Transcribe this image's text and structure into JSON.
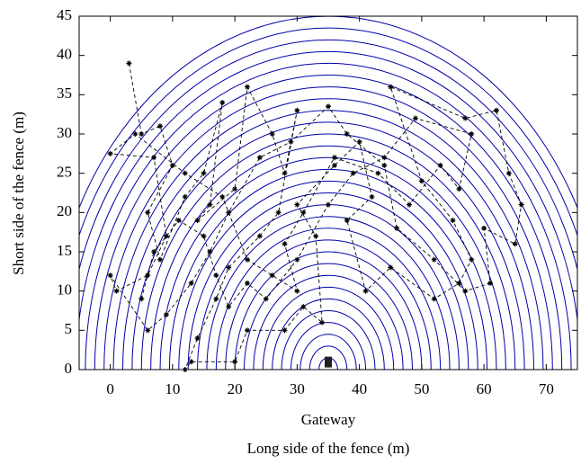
{
  "chart_data": {
    "type": "scatter",
    "x_label": "Long side of the fence (m)",
    "y_label": "Short side of the fence (m)",
    "annotation": "Gateway",
    "gateway": {
      "x": 35,
      "y": 0.5
    },
    "rings": {
      "color": "#0000aa",
      "center_x": 35,
      "center_y": 0,
      "radii": [
        1.5,
        3,
        4.5,
        6,
        7.5,
        9,
        10.5,
        12,
        13.5,
        15,
        16.5,
        18,
        19.5,
        21,
        22.5,
        24,
        25.5,
        27,
        28.5,
        30,
        31.5,
        33,
        34.5,
        36,
        37.5,
        39,
        40.5,
        42,
        43.5,
        45
      ]
    },
    "xlim": [
      -5,
      75
    ],
    "ylim": [
      0,
      45
    ],
    "xticks": [
      0,
      10,
      20,
      30,
      40,
      50,
      60,
      70
    ],
    "yticks": [
      0,
      5,
      10,
      15,
      20,
      25,
      30,
      35,
      40,
      45
    ],
    "series": [
      {
        "color": "#000000",
        "x": [
          3,
          5,
          8,
          10,
          6,
          8,
          12,
          15,
          18,
          16,
          14,
          20,
          22,
          26,
          28,
          30,
          27,
          24,
          19,
          17,
          14,
          12,
          13,
          20,
          22,
          28,
          31,
          34,
          33,
          30,
          36,
          40,
          42,
          38,
          41,
          45,
          52,
          56,
          58,
          55,
          50,
          45,
          57,
          62,
          64,
          66,
          65,
          60,
          61,
          57,
          52,
          46,
          44,
          38,
          35,
          29,
          24,
          19,
          16,
          13,
          9,
          6,
          0,
          1,
          6,
          9,
          7,
          0,
          4,
          12,
          18,
          22,
          26,
          30,
          28,
          31,
          36,
          43,
          48,
          53,
          56,
          58,
          49,
          44,
          39,
          35,
          30,
          25,
          22,
          19,
          17,
          15,
          11,
          7,
          5
        ],
        "values": [
          39,
          30,
          31,
          26,
          20,
          14,
          22,
          25,
          34,
          21,
          19,
          23,
          36,
          30,
          25,
          33,
          20,
          17,
          13,
          9,
          4,
          0,
          1,
          1,
          5,
          5,
          8,
          6,
          17,
          21,
          26,
          29,
          22,
          19,
          10,
          13,
          9,
          11,
          14,
          19,
          24,
          36,
          32,
          33,
          25,
          21,
          16,
          18,
          11,
          10,
          14,
          18,
          26,
          30,
          33.5,
          29,
          27,
          20,
          15,
          11,
          7,
          5,
          12,
          10,
          12,
          17,
          27,
          27.5,
          30,
          25,
          22,
          14,
          12,
          10,
          16,
          20,
          27,
          25,
          21,
          26,
          23,
          30,
          32,
          27,
          25,
          21,
          14,
          9,
          11,
          8,
          12,
          17,
          19,
          15,
          9
        ]
      }
    ]
  }
}
